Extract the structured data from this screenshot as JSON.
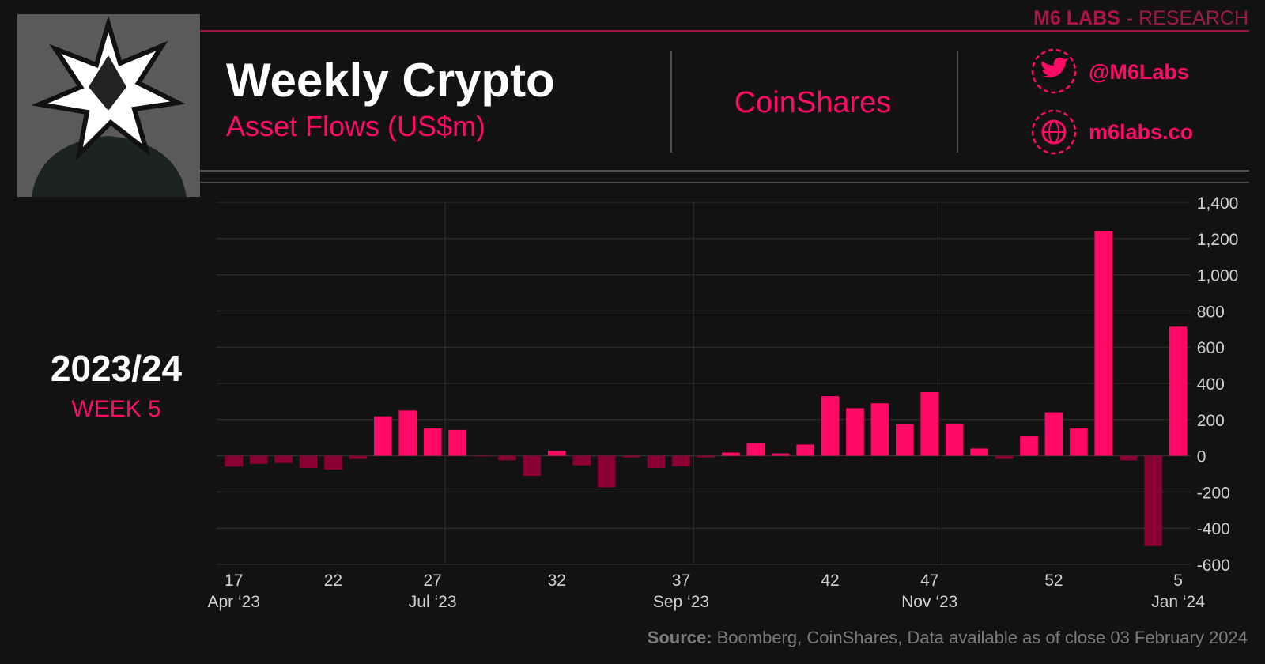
{
  "header": {
    "brand": "M6 LABS",
    "brand_suffix": "- RESEARCH",
    "partner": "CoinShares",
    "handle": "@M6Labs",
    "website": "m6labs.co"
  },
  "season": {
    "year": "2023/24",
    "week": "WEEK 5"
  },
  "chart_data": {
    "type": "bar",
    "title": "Weekly Crypto",
    "subtitle": "Asset Flows (US$m)",
    "categories": [
      "17",
      null,
      null,
      null,
      "22",
      null,
      null,
      null,
      "27",
      null,
      null,
      null,
      null,
      "32",
      null,
      null,
      null,
      null,
      "37",
      null,
      null,
      null,
      null,
      null,
      "42",
      null,
      null,
      null,
      "47",
      null,
      null,
      null,
      null,
      "52",
      null,
      null,
      null,
      null,
      "5"
    ],
    "month_labels": [
      "Apr ‘23",
      null,
      null,
      null,
      null,
      null,
      null,
      null,
      "Jul ‘23",
      null,
      null,
      null,
      null,
      null,
      null,
      null,
      null,
      null,
      "Sep ‘23",
      null,
      null,
      null,
      null,
      null,
      null,
      null,
      null,
      null,
      "Nov ‘23",
      null,
      null,
      null,
      null,
      null,
      null,
      null,
      null,
      null,
      "Jan ‘24"
    ],
    "values": [
      -60,
      -45,
      -40,
      -67,
      -76,
      -18,
      218,
      250,
      151,
      143,
      -4,
      -25,
      -111,
      27,
      -53,
      -174,
      -9,
      -67,
      -58,
      -9,
      18,
      71,
      13,
      62,
      330,
      263,
      290,
      174,
      352,
      178,
      40,
      -18,
      107,
      240,
      151,
      1243,
      -25,
      -499,
      713
    ],
    "color": "#ff0a64",
    "negative_color": "#8a0032",
    "ylim": [
      -600,
      1400
    ],
    "yticks": [
      -600,
      -400,
      -200,
      0,
      200,
      400,
      600,
      800,
      {
        "value": 1000,
        "label": "1,000"
      },
      {
        "value": 1200,
        "label": "1,200"
      },
      {
        "value": 1400,
        "label": "1,400"
      }
    ],
    "grid": true
  },
  "source": {
    "label": "Source:",
    "text": "Boomberg, CoinShares, Data available as of close 03 February 2024"
  }
}
